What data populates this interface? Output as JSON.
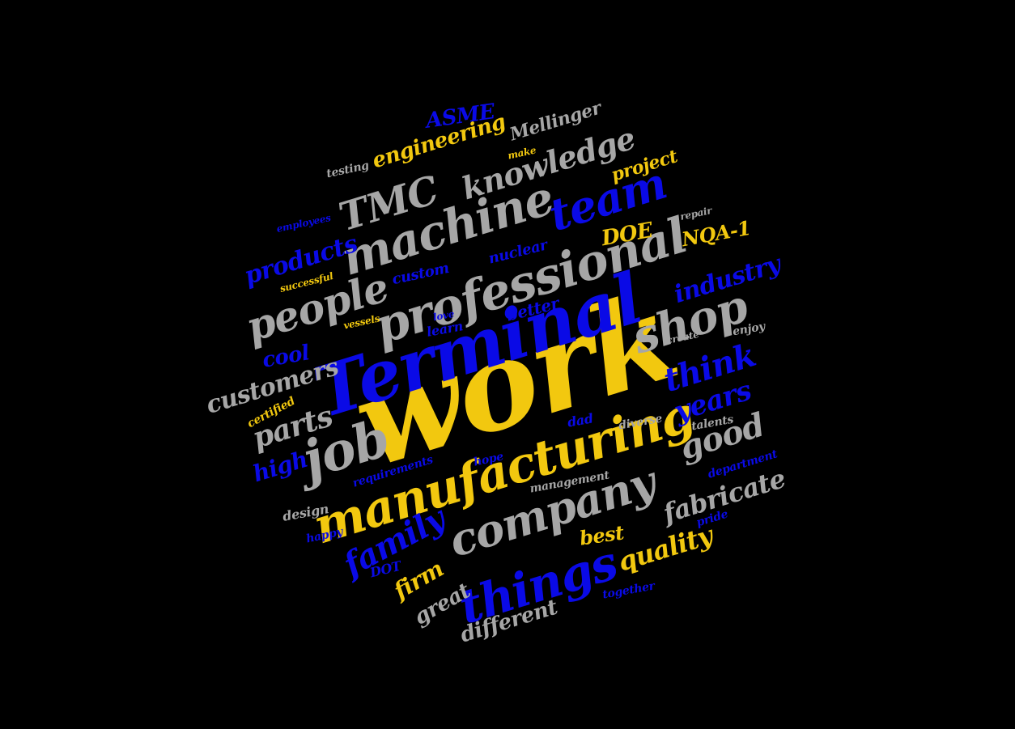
{
  "palette": {
    "background": "#000000",
    "yellow": "#f2c80f",
    "blue": "#0a0ae6",
    "gray": "#a6a6a6"
  },
  "words": [
    {
      "text": "work",
      "color": "yellow"
    },
    {
      "text": "Terminal",
      "color": "blue"
    },
    {
      "text": "manufacturing",
      "color": "yellow"
    },
    {
      "text": "professional",
      "color": "gray"
    },
    {
      "text": "machine",
      "color": "gray"
    },
    {
      "text": "company",
      "color": "gray"
    },
    {
      "text": "things",
      "color": "blue"
    },
    {
      "text": "people",
      "color": "gray"
    },
    {
      "text": "shop",
      "color": "gray"
    },
    {
      "text": "job",
      "color": "gray"
    },
    {
      "text": "team",
      "color": "blue"
    },
    {
      "text": "TMC",
      "color": "gray"
    },
    {
      "text": "knowledge",
      "color": "gray"
    },
    {
      "text": "engineering",
      "color": "yellow"
    },
    {
      "text": "ASME",
      "color": "blue"
    },
    {
      "text": "Mellinger",
      "color": "gray"
    },
    {
      "text": "testing",
      "color": "gray"
    },
    {
      "text": "make",
      "color": "yellow"
    },
    {
      "text": "project",
      "color": "yellow"
    },
    {
      "text": "repair",
      "color": "gray"
    },
    {
      "text": "employees",
      "color": "blue"
    },
    {
      "text": "products",
      "color": "blue"
    },
    {
      "text": "DOE",
      "color": "yellow"
    },
    {
      "text": "NQA-1",
      "color": "yellow"
    },
    {
      "text": "industry",
      "color": "blue"
    },
    {
      "text": "nuclear",
      "color": "blue"
    },
    {
      "text": "custom",
      "color": "blue"
    },
    {
      "text": "successful",
      "color": "yellow"
    },
    {
      "text": "vessels",
      "color": "yellow"
    },
    {
      "text": "love",
      "color": "blue"
    },
    {
      "text": "learn",
      "color": "blue"
    },
    {
      "text": "better",
      "color": "blue"
    },
    {
      "text": "create",
      "color": "gray"
    },
    {
      "text": "enjoy",
      "color": "gray"
    },
    {
      "text": "cool",
      "color": "blue"
    },
    {
      "text": "customers",
      "color": "gray"
    },
    {
      "text": "think",
      "color": "blue"
    },
    {
      "text": "years",
      "color": "blue"
    },
    {
      "text": "certified",
      "color": "yellow"
    },
    {
      "text": "parts",
      "color": "gray"
    },
    {
      "text": "dad",
      "color": "blue"
    },
    {
      "text": "diverse",
      "color": "gray"
    },
    {
      "text": "talents",
      "color": "gray"
    },
    {
      "text": "good",
      "color": "gray"
    },
    {
      "text": "high",
      "color": "blue"
    },
    {
      "text": "hope",
      "color": "blue"
    },
    {
      "text": "requirements",
      "color": "blue"
    },
    {
      "text": "department",
      "color": "blue"
    },
    {
      "text": "management",
      "color": "gray"
    },
    {
      "text": "fabricate",
      "color": "gray"
    },
    {
      "text": "design",
      "color": "gray"
    },
    {
      "text": "pride",
      "color": "blue"
    },
    {
      "text": "happy",
      "color": "blue"
    },
    {
      "text": "family",
      "color": "blue"
    },
    {
      "text": "best",
      "color": "yellow"
    },
    {
      "text": "quality",
      "color": "yellow"
    },
    {
      "text": "DOT",
      "color": "blue"
    },
    {
      "text": "firm",
      "color": "yellow"
    },
    {
      "text": "together",
      "color": "blue"
    },
    {
      "text": "great",
      "color": "gray"
    },
    {
      "text": "different",
      "color": "gray"
    }
  ]
}
